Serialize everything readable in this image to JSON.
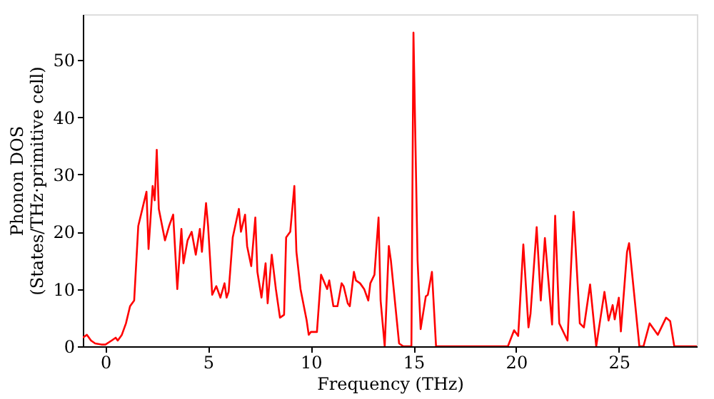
{
  "chart_data": {
    "type": "line",
    "xlabel": "Frequency (THz)",
    "ylabel": "Phonon DOS\n(States/THz·primitive cell)",
    "xlim": [
      -1.1,
      28.8
    ],
    "ylim": [
      0,
      58
    ],
    "xticks": [
      0,
      5,
      10,
      15,
      20,
      25
    ],
    "yticks": [
      0,
      10,
      20,
      30,
      40,
      50
    ],
    "grid": false,
    "marker": "none",
    "line_style": "solid",
    "series": [
      {
        "color": "#ff0000",
        "x": [
          -1.1,
          -0.9,
          -0.7,
          -0.5,
          -0.2,
          0.0,
          0.3,
          0.5,
          0.6,
          0.8,
          1.0,
          1.2,
          1.4,
          1.6,
          1.8,
          2.0,
          2.1,
          2.3,
          2.4,
          2.5,
          2.6,
          2.9,
          3.1,
          3.3,
          3.5,
          3.7,
          3.8,
          4.0,
          4.2,
          4.4,
          4.6,
          4.7,
          4.9,
          5.0,
          5.2,
          5.4,
          5.6,
          5.8,
          5.9,
          6.0,
          6.2,
          6.5,
          6.6,
          6.8,
          6.9,
          7.1,
          7.3,
          7.4,
          7.6,
          7.8,
          7.9,
          8.1,
          8.3,
          8.5,
          8.7,
          8.8,
          9.0,
          9.2,
          9.3,
          9.5,
          9.8,
          9.9,
          10.0,
          10.3,
          10.5,
          10.8,
          10.9,
          11.1,
          11.3,
          11.5,
          11.6,
          11.8,
          11.9,
          12.1,
          12.2,
          12.4,
          12.6,
          12.8,
          12.9,
          13.1,
          13.3,
          13.4,
          13.6,
          13.8,
          13.9,
          14.3,
          14.5,
          14.9,
          15.0,
          15.2,
          15.35,
          15.6,
          15.7,
          15.9,
          16.1,
          19.6,
          19.9,
          20.1,
          20.35,
          20.6,
          20.7,
          21.0,
          21.2,
          21.4,
          21.75,
          21.9,
          22.1,
          22.5,
          22.8,
          23.1,
          23.3,
          23.6,
          23.9,
          24.3,
          24.5,
          24.7,
          24.8,
          25.0,
          25.1,
          25.4,
          25.5,
          26.0,
          26.2,
          26.5,
          26.9,
          27.3,
          27.5,
          27.7,
          28.8
        ],
        "values": [
          1.5,
          2,
          1,
          0.5,
          0.3,
          0.3,
          1,
          1.5,
          1,
          2,
          4,
          7,
          8,
          21,
          24,
          27,
          17,
          28,
          25.5,
          34.3,
          24,
          18.5,
          21,
          23,
          10,
          20.5,
          14.5,
          18.5,
          20,
          16,
          20.5,
          16.5,
          25,
          21,
          9,
          10.5,
          8.5,
          11,
          8.5,
          9.5,
          19,
          24,
          20,
          23,
          17.5,
          14,
          22.5,
          13,
          8.5,
          14.5,
          7.5,
          16,
          10,
          5,
          5.5,
          19,
          20,
          28,
          16.5,
          10,
          4.5,
          2,
          2.5,
          2.5,
          12.5,
          10,
          11.5,
          7,
          7,
          11,
          10.5,
          7.5,
          7,
          13,
          11.5,
          11,
          10,
          8,
          11,
          12.5,
          22.5,
          8,
          0,
          17.5,
          15,
          0.5,
          0,
          0,
          54.8,
          15,
          3,
          8.7,
          9,
          13,
          0,
          0,
          2.8,
          1.8,
          17.8,
          3.3,
          5.7,
          20.8,
          8,
          18.9,
          3.8,
          22.8,
          4,
          1,
          23.5,
          4,
          3.3,
          10.8,
          0,
          9.5,
          4.5,
          7.2,
          4.7,
          8.5,
          2.6,
          16.5,
          18,
          0,
          0,
          4,
          2,
          5,
          4.4,
          0,
          0
        ]
      }
    ]
  }
}
